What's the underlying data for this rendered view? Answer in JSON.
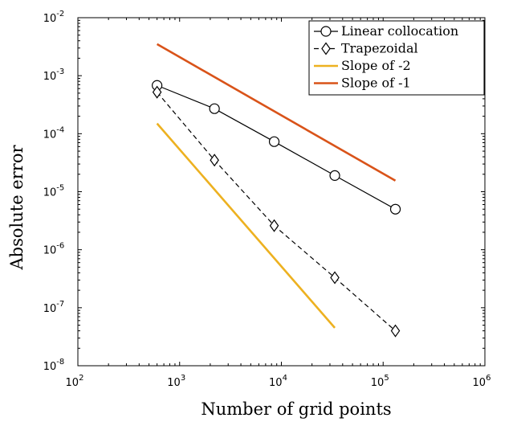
{
  "chart_data": {
    "type": "line",
    "xlabel": "Number of grid points",
    "ylabel": "Absolute error",
    "xscale": "log",
    "yscale": "log",
    "xlim": [
      100,
      1000000
    ],
    "ylim": [
      1e-08,
      0.01
    ],
    "x_ticks": [
      {
        "value": 100,
        "base": "10",
        "exp": "2"
      },
      {
        "value": 1000,
        "base": "10",
        "exp": "3"
      },
      {
        "value": 10000,
        "base": "10",
        "exp": "4"
      },
      {
        "value": 100000,
        "base": "10",
        "exp": "5"
      },
      {
        "value": 1000000,
        "base": "10",
        "exp": "6"
      }
    ],
    "y_ticks": [
      {
        "value": 1e-08,
        "base": "10",
        "exp": "-8"
      },
      {
        "value": 1e-07,
        "base": "10",
        "exp": "-7"
      },
      {
        "value": 1e-06,
        "base": "10",
        "exp": "-6"
      },
      {
        "value": 1e-05,
        "base": "10",
        "exp": "-5"
      },
      {
        "value": 0.0001,
        "base": "10",
        "exp": "-4"
      },
      {
        "value": 0.001,
        "base": "10",
        "exp": "-3"
      },
      {
        "value": 0.01,
        "base": "10",
        "exp": "-2"
      }
    ],
    "grid": false,
    "legend_position": "top-right",
    "series": [
      {
        "name": "Linear collocation",
        "color": "#000000",
        "line_style": "solid",
        "marker": "circle",
        "x": [
          600,
          2200,
          8500,
          33500,
          132000
        ],
        "y": [
          0.00068,
          0.00027,
          7.3e-05,
          1.9e-05,
          5e-06
        ]
      },
      {
        "name": "Trapezoidal",
        "color": "#000000",
        "line_style": "dashed",
        "marker": "diamond",
        "x": [
          600,
          2200,
          8500,
          33500,
          132000
        ],
        "y": [
          0.00052,
          3.5e-05,
          2.6e-06,
          3.3e-07,
          4e-08
        ]
      },
      {
        "name": "Slope of -2",
        "color": "#EDB120",
        "line_style": "solid",
        "marker": "none",
        "x": [
          600,
          33500
        ],
        "y": [
          0.00015,
          4.5e-08
        ]
      },
      {
        "name": "Slope of -1",
        "color": "#D95319",
        "line_style": "solid",
        "marker": "none",
        "x": [
          600,
          132000
        ],
        "y": [
          0.0035,
          1.55e-05
        ]
      }
    ]
  }
}
